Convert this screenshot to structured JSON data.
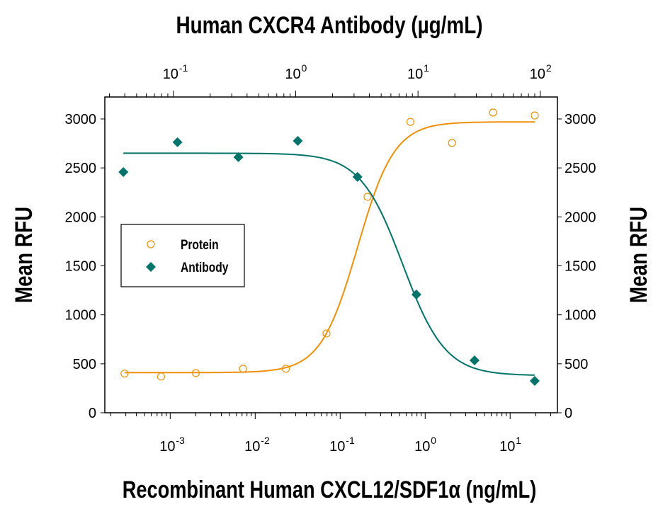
{
  "chart_data": {
    "type": "scatter",
    "title": "Human CXCR4 Antibody (µg/mL)",
    "xlabel": "Recombinant Human CXCL12/SDF1α (ng/mL)",
    "ylabel_left": "Mean RFU",
    "ylabel_right": "Mean RFU",
    "x_bottom": {
      "scale": "log",
      "range": [
        0.00017,
        36
      ],
      "ticks": [
        0.001,
        0.01,
        0.1,
        1,
        10
      ],
      "tick_labels": [
        [
          "10",
          "-3"
        ],
        [
          "10",
          "-2"
        ],
        [
          "10",
          "-1"
        ],
        [
          "10",
          "0"
        ],
        [
          "10",
          "1"
        ]
      ]
    },
    "x_top": {
      "scale": "log",
      "range": [
        0.0275,
        138
      ],
      "ticks": [
        0.1,
        1,
        10,
        100
      ],
      "tick_labels": [
        [
          "10",
          "-1"
        ],
        [
          "10",
          "0"
        ],
        [
          "10",
          "1"
        ],
        [
          "10",
          "2"
        ]
      ]
    },
    "y": {
      "range": [
        0,
        3200
      ],
      "ticks": [
        0,
        500,
        1000,
        1500,
        2000,
        2500,
        3000
      ]
    },
    "grid": false,
    "legend_position": "middle-left",
    "series": [
      {
        "name": "Protein",
        "axis": "bottom",
        "marker": "open-circle",
        "color": "#f0900a",
        "x": [
          0.00029,
          0.00078,
          0.002,
          0.0072,
          0.023,
          0.069,
          0.21,
          0.67,
          2.07,
          6.3,
          19.5
        ],
        "y": [
          400,
          370,
          405,
          450,
          450,
          810,
          2205,
          2970,
          2755,
          3065,
          3035
        ],
        "fit": {
          "bottom": 410,
          "top": 2970,
          "ec50": 0.16,
          "hill": 2.0
        }
      },
      {
        "name": "Antibody",
        "axis": "top",
        "marker": "filled-diamond",
        "color": "#00736a",
        "x": [
          0.039,
          0.108,
          0.34,
          1.04,
          3.2,
          9.7,
          29,
          90
        ],
        "y": [
          2458,
          2762,
          2610,
          2776,
          2408,
          1207,
          535,
          325
        ],
        "fit": {
          "bottom": 380,
          "top": 2650,
          "ec50": 7.5,
          "hill": -2.5
        }
      }
    ]
  }
}
